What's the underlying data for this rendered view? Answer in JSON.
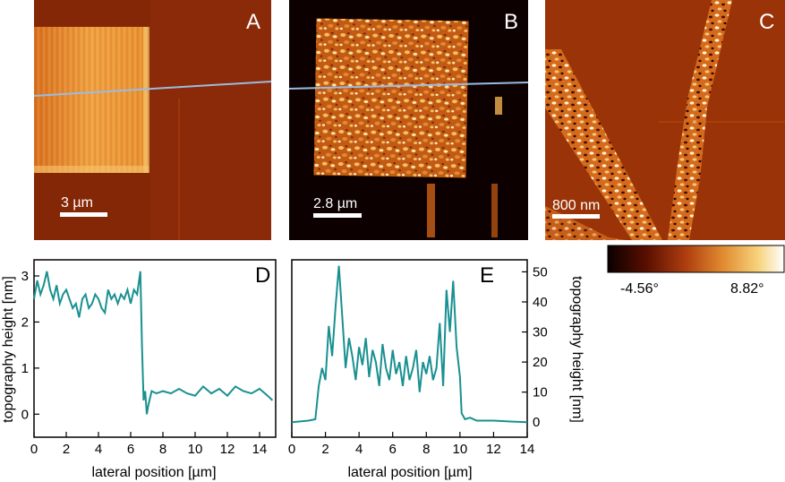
{
  "panels": {
    "a": {
      "letter": "A",
      "scalebar": "3 µm"
    },
    "b": {
      "letter": "B",
      "scalebar": "2.8 µm"
    },
    "c": {
      "letter": "C",
      "scalebar": "800 nm"
    }
  },
  "colorbar": {
    "min_label": "-4.56°",
    "max_label": "8.82°",
    "stops": [
      "#0a0000",
      "#5a0f00",
      "#b04010",
      "#e08a30",
      "#f6d27a",
      "#ffffff"
    ]
  },
  "colors": {
    "profile_line": "#1a9090",
    "cut_line": "#9cbbe0",
    "panel_bg": "#8a2a08"
  },
  "chart_data": [
    {
      "type": "line",
      "panel": "D",
      "xlabel": "lateral position [µm]",
      "ylabel": "topography height [nm]",
      "xlim": [
        0,
        15
      ],
      "ylim": [
        -0.5,
        3.35
      ],
      "xticks": [
        0,
        2,
        4,
        6,
        8,
        10,
        12,
        14
      ],
      "yticks": [
        0,
        1,
        2,
        3
      ],
      "x": [
        0,
        0.2,
        0.4,
        0.6,
        0.8,
        1.0,
        1.2,
        1.4,
        1.6,
        1.8,
        2.0,
        2.2,
        2.4,
        2.6,
        2.8,
        3.0,
        3.2,
        3.4,
        3.6,
        3.8,
        4.0,
        4.2,
        4.4,
        4.6,
        4.8,
        5.0,
        5.2,
        5.4,
        5.6,
        5.8,
        6.0,
        6.2,
        6.4,
        6.6,
        6.7,
        6.8,
        6.9,
        7.0,
        7.1,
        7.3,
        7.6,
        8.0,
        8.5,
        9.0,
        9.5,
        10.0,
        10.5,
        11.0,
        11.5,
        12.0,
        12.5,
        13.0,
        13.5,
        14.0,
        14.5,
        14.8
      ],
      "y": [
        2.5,
        2.9,
        2.6,
        2.8,
        3.1,
        2.7,
        2.5,
        2.8,
        2.4,
        2.6,
        2.7,
        2.5,
        2.3,
        2.4,
        2.1,
        2.5,
        2.6,
        2.3,
        2.4,
        2.6,
        2.5,
        2.3,
        2.2,
        2.7,
        2.5,
        2.6,
        2.4,
        2.6,
        2.5,
        2.7,
        2.4,
        2.7,
        2.6,
        3.1,
        1.5,
        0.3,
        0.5,
        0.0,
        0.2,
        0.5,
        0.45,
        0.5,
        0.45,
        0.55,
        0.45,
        0.4,
        0.6,
        0.45,
        0.55,
        0.4,
        0.6,
        0.5,
        0.45,
        0.55,
        0.4,
        0.3
      ]
    },
    {
      "type": "line",
      "panel": "E",
      "xlabel": "lateral position [µm]",
      "ylabel": "topography height [nm]",
      "xlim": [
        0,
        14
      ],
      "ylim": [
        -5,
        54
      ],
      "xticks": [
        0,
        2,
        4,
        6,
        8,
        10,
        12,
        14
      ],
      "yticks": [
        0,
        10,
        20,
        30,
        40,
        50
      ],
      "x": [
        0,
        1.0,
        1.4,
        1.6,
        1.8,
        2.0,
        2.2,
        2.4,
        2.6,
        2.8,
        3.0,
        3.2,
        3.4,
        3.6,
        3.8,
        4.0,
        4.2,
        4.4,
        4.6,
        4.8,
        5.0,
        5.2,
        5.4,
        5.6,
        5.8,
        6.0,
        6.2,
        6.4,
        6.6,
        6.8,
        7.0,
        7.2,
        7.4,
        7.6,
        7.8,
        8.0,
        8.2,
        8.4,
        8.6,
        8.8,
        9.0,
        9.2,
        9.4,
        9.6,
        9.8,
        10.0,
        10.1,
        10.3,
        10.6,
        11,
        12,
        13,
        14
      ],
      "y": [
        0,
        0.5,
        1,
        12,
        18,
        14,
        32,
        22,
        38,
        52,
        35,
        18,
        28,
        22,
        14,
        25,
        19,
        28,
        15,
        24,
        20,
        12,
        26,
        18,
        14,
        24,
        16,
        20,
        12,
        22,
        14,
        18,
        24,
        10,
        20,
        16,
        22,
        14,
        18,
        33,
        12,
        44,
        30,
        47,
        25,
        15,
        3,
        1,
        1.5,
        0.5,
        0.5,
        0.2,
        0
      ]
    }
  ]
}
